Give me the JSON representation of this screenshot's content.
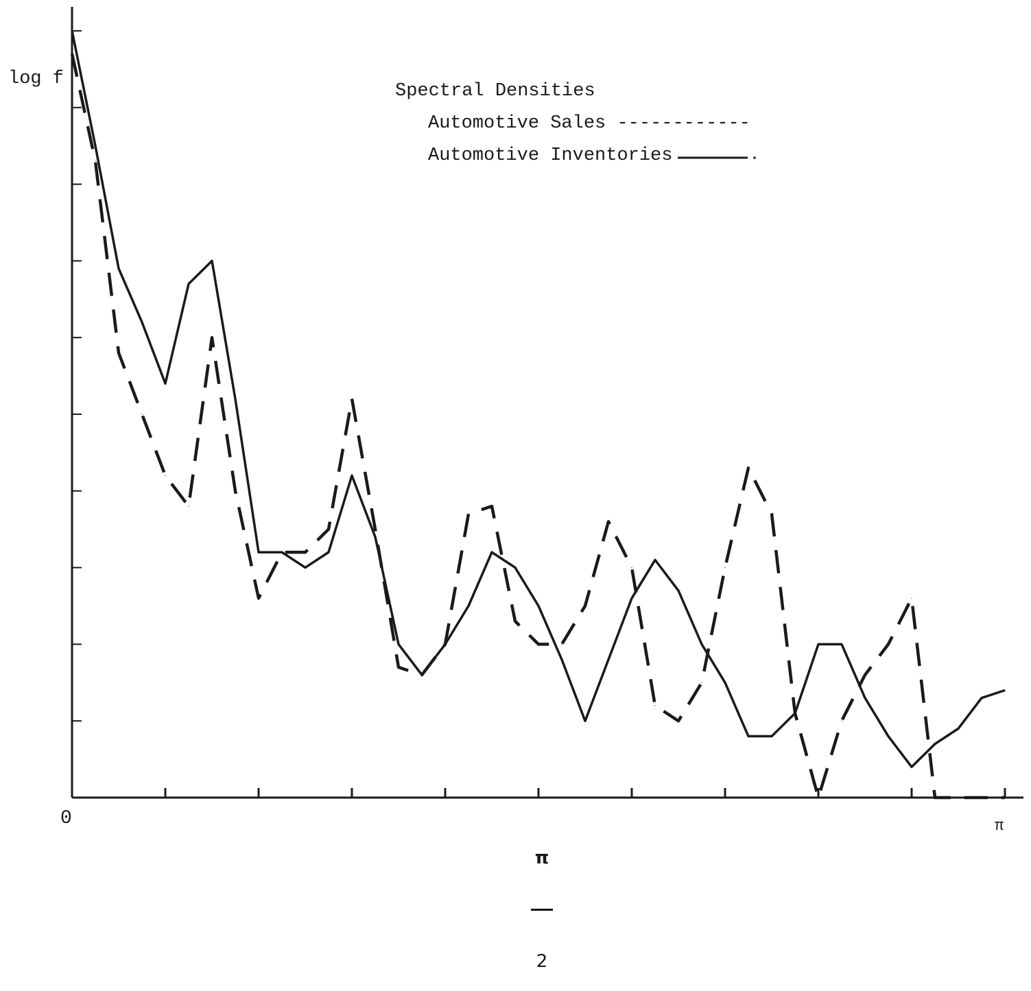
{
  "chart_data": {
    "type": "line",
    "title": "Spectral Densities",
    "ylabel": "log f",
    "xlabel": "",
    "x_tick_labels": [
      "0",
      "π",
      "2",
      "π"
    ],
    "xlim": [
      0,
      1
    ],
    "ylim": [
      0,
      10
    ],
    "grid": false,
    "legend_position": "top-center",
    "series": [
      {
        "name": "Automotive Sales",
        "style": "dashed",
        "color": "#1a1a1a",
        "x": [
          0.0,
          0.025,
          0.05,
          0.075,
          0.1,
          0.125,
          0.15,
          0.175,
          0.2,
          0.225,
          0.25,
          0.275,
          0.3,
          0.325,
          0.35,
          0.375,
          0.4,
          0.425,
          0.45,
          0.475,
          0.5,
          0.525,
          0.55,
          0.575,
          0.6,
          0.625,
          0.65,
          0.675,
          0.7,
          0.725,
          0.75,
          0.775,
          0.8,
          0.825,
          0.85,
          0.875,
          0.9,
          0.925,
          0.95,
          0.975,
          1.0
        ],
        "y": [
          9.7,
          8.3,
          5.8,
          5.0,
          4.2,
          3.8,
          6.0,
          4.0,
          2.6,
          3.2,
          3.2,
          3.5,
          5.2,
          3.5,
          1.7,
          1.6,
          2.0,
          3.7,
          3.8,
          2.3,
          2.0,
          2.0,
          2.5,
          3.6,
          3.0,
          1.2,
          1.0,
          1.5,
          3.0,
          4.3,
          3.7,
          1.1,
          0.0,
          1.0,
          1.6,
          2.0,
          2.6,
          0.0,
          0.0,
          0.0,
          0.0
        ]
      },
      {
        "name": "Automotive Inventories",
        "style": "solid",
        "color": "#1a1a1a",
        "x": [
          0.0,
          0.025,
          0.05,
          0.075,
          0.1,
          0.125,
          0.15,
          0.175,
          0.2,
          0.225,
          0.25,
          0.275,
          0.3,
          0.325,
          0.35,
          0.375,
          0.4,
          0.425,
          0.45,
          0.475,
          0.5,
          0.525,
          0.55,
          0.575,
          0.6,
          0.625,
          0.65,
          0.675,
          0.7,
          0.725,
          0.75,
          0.775,
          0.8,
          0.825,
          0.85,
          0.875,
          0.9,
          0.925,
          0.95,
          0.975,
          1.0
        ],
        "y": [
          10.0,
          8.5,
          6.9,
          6.2,
          5.4,
          6.7,
          7.0,
          5.2,
          3.2,
          3.2,
          3.0,
          3.2,
          4.2,
          3.4,
          2.0,
          1.6,
          2.0,
          2.5,
          3.2,
          3.0,
          2.5,
          1.8,
          1.0,
          1.8,
          2.6,
          3.1,
          2.7,
          2.0,
          1.5,
          0.8,
          0.8,
          1.1,
          2.0,
          2.0,
          1.3,
          0.8,
          0.4,
          0.7,
          0.9,
          1.3,
          1.4
        ]
      }
    ]
  },
  "labels": {
    "ylabel": "log f",
    "legend_title": "Spectral Densities",
    "legend_sales": "Automotive Sales ------------",
    "legend_inv": "Automotive Inventories",
    "tick_zero": "0",
    "tick_half_num": "π",
    "tick_half_den": "2",
    "tick_pi": "π"
  }
}
